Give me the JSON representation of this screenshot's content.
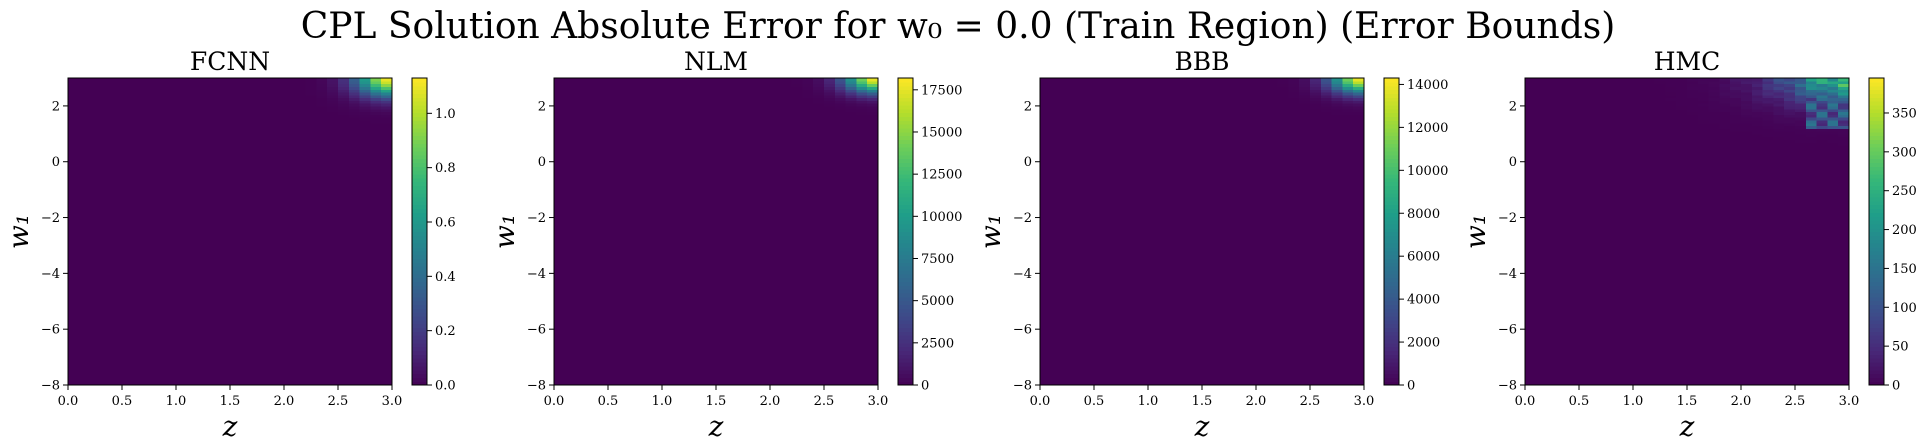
{
  "figure": {
    "title": "CPL Solution Absolute Error for w₀ = 0.0 (Train Region) (Error Bounds)"
  },
  "colormap": {
    "name": "viridis",
    "stops": [
      "#440154",
      "#482878",
      "#3e4989",
      "#31688e",
      "#26828e",
      "#1f9e89",
      "#35b779",
      "#6ece58",
      "#b5de2b",
      "#fde725"
    ]
  },
  "chart_data": [
    {
      "type": "heatmap",
      "title": "FCNN",
      "xlabel": "z",
      "ylabel": "w₁",
      "xlim": [
        0.0,
        3.0
      ],
      "ylim": [
        -8,
        3
      ],
      "x_ticks": [
        "0.0",
        "0.5",
        "1.0",
        "1.5",
        "2.0",
        "2.5",
        "3.0"
      ],
      "y_ticks": [
        "−8",
        "−6",
        "−4",
        "−2",
        "0",
        "2"
      ],
      "colorbar": {
        "min": 0,
        "max": 1.13,
        "ticks": [
          "0.0",
          "0.2",
          "0.4",
          "0.6",
          "0.8",
          "1.0"
        ]
      },
      "grid": {
        "nx": 30,
        "ny": 110
      },
      "error_field": {
        "peak": 1.13,
        "peak_location": [
          3.0,
          3.0
        ],
        "z_falloff": 0.32,
        "w1_falloff": 0.62,
        "exponent": 2.0,
        "irregular": false
      }
    },
    {
      "type": "heatmap",
      "title": "NLM",
      "xlabel": "z",
      "ylabel": "w₁",
      "xlim": [
        0.0,
        3.0
      ],
      "ylim": [
        -8,
        3
      ],
      "x_ticks": [
        "0.0",
        "0.5",
        "1.0",
        "1.5",
        "2.0",
        "2.5",
        "3.0"
      ],
      "y_ticks": [
        "−8",
        "−6",
        "−4",
        "−2",
        "0",
        "2"
      ],
      "colorbar": {
        "min": 0,
        "max": 18200,
        "ticks": [
          "0",
          "2500",
          "5000",
          "7500",
          "10000",
          "12500",
          "15000",
          "17500"
        ]
      },
      "grid": {
        "nx": 30,
        "ny": 110
      },
      "error_field": {
        "peak": 18200,
        "peak_location": [
          3.0,
          3.0
        ],
        "z_falloff": 0.3,
        "w1_falloff": 0.5,
        "exponent": 2.0,
        "irregular": false
      }
    },
    {
      "type": "heatmap",
      "title": "BBB",
      "xlabel": "z",
      "ylabel": "w₁",
      "xlim": [
        0.0,
        3.0
      ],
      "ylim": [
        -8,
        3
      ],
      "x_ticks": [
        "0.0",
        "0.5",
        "1.0",
        "1.5",
        "2.0",
        "2.5",
        "3.0"
      ],
      "y_ticks": [
        "−8",
        "−6",
        "−4",
        "−2",
        "0",
        "2"
      ],
      "colorbar": {
        "min": 0,
        "max": 14300,
        "ticks": [
          "0",
          "2000",
          "4000",
          "6000",
          "8000",
          "10000",
          "12000",
          "14000"
        ]
      },
      "grid": {
        "nx": 30,
        "ny": 110
      },
      "error_field": {
        "peak": 14300,
        "peak_location": [
          3.0,
          3.0
        ],
        "z_falloff": 0.3,
        "w1_falloff": 0.52,
        "exponent": 2.0,
        "irregular": false
      }
    },
    {
      "type": "heatmap",
      "title": "HMC",
      "xlabel": "z",
      "ylabel": "w₁",
      "xlim": [
        0.0,
        3.0
      ],
      "ylim": [
        -8,
        3
      ],
      "x_ticks": [
        "0.0",
        "0.5",
        "1.0",
        "1.5",
        "2.0",
        "2.5",
        "3.0"
      ],
      "y_ticks": [
        "−8",
        "−6",
        "−4",
        "−2",
        "0",
        "2"
      ],
      "colorbar": {
        "min": 0,
        "max": 395,
        "ticks": [
          "0",
          "50",
          "100",
          "150",
          "200",
          "250",
          "300",
          "350"
        ]
      },
      "grid": {
        "nx": 30,
        "ny": 110
      },
      "error_field": {
        "peak": 395,
        "peak_location": [
          3.0,
          3.0
        ],
        "z_falloff": 0.55,
        "w1_falloff": 0.75,
        "exponent": 1.6,
        "irregular": true
      }
    }
  ]
}
